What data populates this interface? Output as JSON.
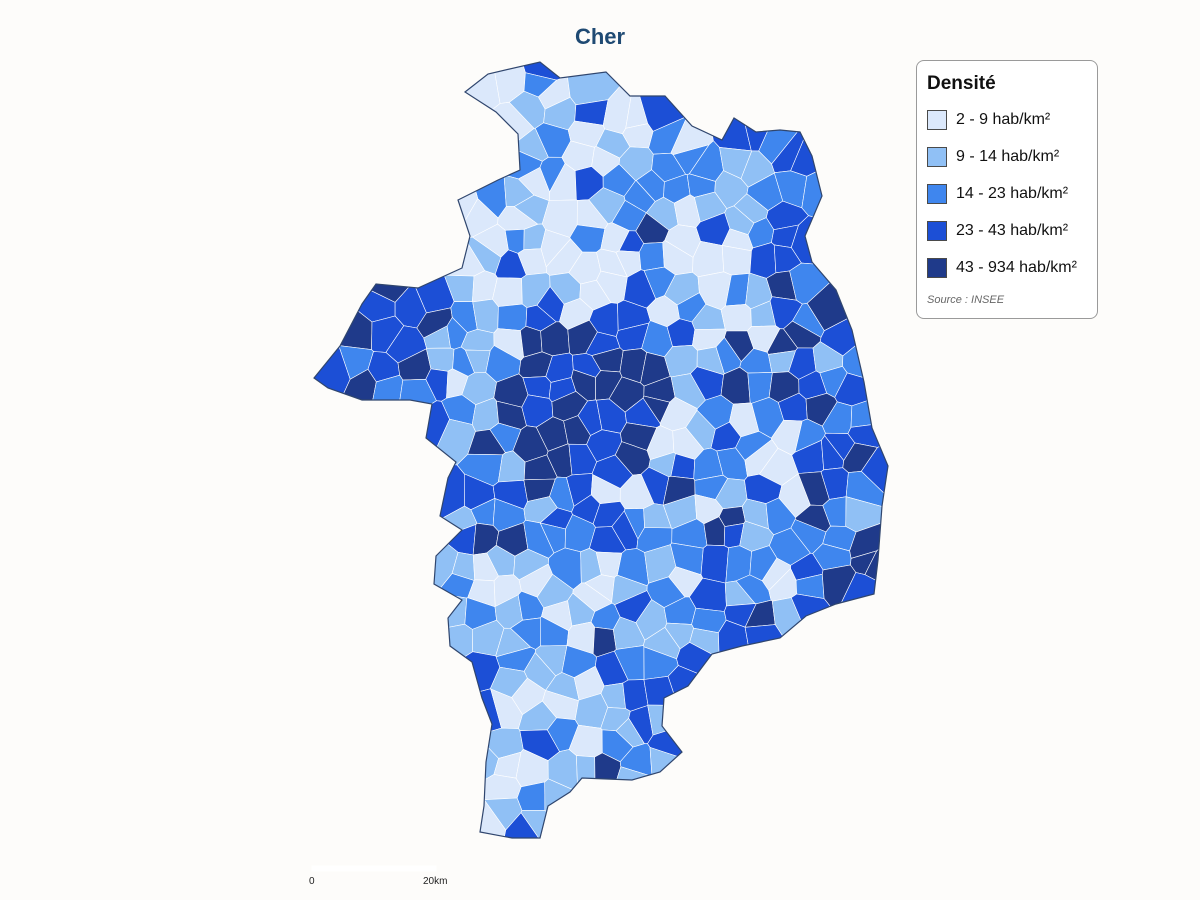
{
  "map": {
    "title": "Cher",
    "region_colors": {
      "class_1": "#dbe8fb",
      "class_2": "#90c0f5",
      "class_3": "#3f86ee",
      "class_4": "#1c4fd6",
      "class_5": "#1f3a8a"
    },
    "border_color": "#30466e"
  },
  "legend": {
    "title": "Densité",
    "items": [
      {
        "label": "2 - 9 hab/km²",
        "color": "#dbe8fb"
      },
      {
        "label": "9 - 14 hab/km²",
        "color": "#90c0f5"
      },
      {
        "label": "14 - 23 hab/km²",
        "color": "#3f86ee"
      },
      {
        "label": "23 - 43 hab/km²",
        "color": "#1c4fd6"
      },
      {
        "label": "43 - 934 hab/km²",
        "color": "#1f3a8a"
      }
    ],
    "source": "Source : INSEE"
  },
  "scale_bar": {
    "start_label": "0",
    "end_label": "20km"
  }
}
